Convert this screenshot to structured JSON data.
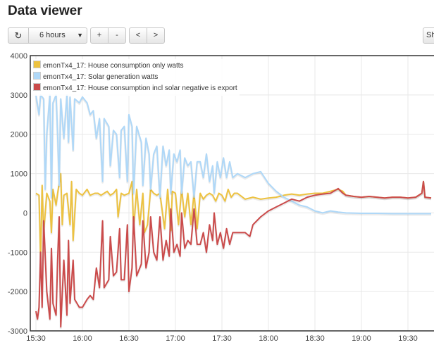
{
  "page_title": "Data viewer",
  "toolbar": {
    "refresh_icon": "refresh-icon",
    "refresh_glyph": "↻",
    "timewindow_value": "6 hours",
    "zoom_in_label": "+",
    "zoom_out_label": "-",
    "pan_left_label": "<",
    "pan_right_label": ">",
    "show_label": "Sh"
  },
  "chart_data": {
    "type": "line",
    "title": "",
    "xlabel": "",
    "ylabel": "",
    "x_ticks": [
      "15:30",
      "16:00",
      "16:30",
      "17:00",
      "17:30",
      "18:00",
      "18:30",
      "19:00",
      "19:30"
    ],
    "ylim": [
      -3000,
      4000
    ],
    "y_ticks": [
      -3000,
      -2000,
      -1000,
      0,
      1000,
      2000,
      3000,
      4000
    ],
    "grid": true,
    "legend_position": "top-left",
    "series": [
      {
        "name": "emonTx4_17: House consumption only watts",
        "color": "#edc240",
        "points": [
          [
            "15:30",
            500
          ],
          [
            "15:32",
            450
          ],
          [
            "15:33",
            -1200
          ],
          [
            "15:34",
            700
          ],
          [
            "15:35",
            -500
          ],
          [
            "15:37",
            500
          ],
          [
            "15:39",
            300
          ],
          [
            "15:40",
            -500
          ],
          [
            "15:41",
            600
          ],
          [
            "15:43",
            200
          ],
          [
            "15:44",
            500
          ],
          [
            "15:46",
            1000
          ],
          [
            "15:47",
            -300
          ],
          [
            "15:48",
            450
          ],
          [
            "15:50",
            500
          ],
          [
            "15:52",
            -300
          ],
          [
            "15:53",
            800
          ],
          [
            "15:54",
            -700
          ],
          [
            "15:56",
            600
          ],
          [
            "15:58",
            500
          ],
          [
            "16:00",
            450
          ],
          [
            "16:03",
            600
          ],
          [
            "16:05",
            450
          ],
          [
            "16:08",
            500
          ],
          [
            "16:10",
            500
          ],
          [
            "16:12",
            450
          ],
          [
            "16:14",
            500
          ],
          [
            "16:16",
            550
          ],
          [
            "16:18",
            450
          ],
          [
            "16:20",
            500
          ],
          [
            "16:22",
            600
          ],
          [
            "16:23",
            -100
          ],
          [
            "16:25",
            500
          ],
          [
            "16:27",
            450
          ],
          [
            "16:30",
            500
          ],
          [
            "16:32",
            800
          ],
          [
            "16:33",
            -400
          ],
          [
            "16:35",
            600
          ],
          [
            "16:37",
            -300
          ],
          [
            "16:39",
            500
          ],
          [
            "16:40",
            -500
          ],
          [
            "16:42",
            -300
          ],
          [
            "16:44",
            600
          ],
          [
            "16:46",
            500
          ],
          [
            "16:48",
            450
          ],
          [
            "16:50",
            500
          ],
          [
            "16:53",
            -400
          ],
          [
            "16:55",
            600
          ],
          [
            "16:57",
            -450
          ],
          [
            "16:58",
            550
          ],
          [
            "17:00",
            500
          ],
          [
            "17:02",
            -300
          ],
          [
            "17:04",
            600
          ],
          [
            "17:06",
            -100
          ],
          [
            "17:08",
            500
          ],
          [
            "17:10",
            -300
          ],
          [
            "17:12",
            500
          ],
          [
            "17:14",
            -400
          ],
          [
            "17:16",
            500
          ],
          [
            "17:18",
            350
          ],
          [
            "17:20",
            450
          ],
          [
            "17:22",
            500
          ],
          [
            "17:24",
            450
          ],
          [
            "17:26",
            300
          ],
          [
            "17:28",
            500
          ],
          [
            "17:30",
            450
          ],
          [
            "17:32",
            300
          ],
          [
            "17:34",
            600
          ],
          [
            "17:36",
            400
          ],
          [
            "17:38",
            500
          ],
          [
            "17:40",
            500
          ],
          [
            "17:45",
            350
          ],
          [
            "17:50",
            400
          ],
          [
            "17:55",
            350
          ],
          [
            "18:00",
            380
          ],
          [
            "18:05",
            400
          ],
          [
            "18:10",
            450
          ],
          [
            "18:15",
            480
          ],
          [
            "18:20",
            450
          ],
          [
            "18:25",
            480
          ],
          [
            "18:30",
            500
          ],
          [
            "18:35",
            500
          ],
          [
            "18:40",
            550
          ],
          [
            "18:45",
            600
          ],
          [
            "18:48",
            550
          ],
          [
            "18:50",
            450
          ],
          [
            "18:55",
            420
          ],
          [
            "19:00",
            400
          ],
          [
            "19:05",
            420
          ],
          [
            "19:10",
            400
          ],
          [
            "19:15",
            380
          ],
          [
            "19:20",
            400
          ],
          [
            "19:25",
            400
          ],
          [
            "19:30",
            380
          ],
          [
            "19:35",
            400
          ],
          [
            "19:39",
            500
          ],
          [
            "19:40",
            800
          ],
          [
            "19:41",
            400
          ],
          [
            "19:45",
            380
          ]
        ]
      },
      {
        "name": "emonTx4_17: Solar generation watts",
        "color": "#afd8f8",
        "points": [
          [
            "15:30",
            3000
          ],
          [
            "15:32",
            2500
          ],
          [
            "15:33",
            3000
          ],
          [
            "15:35",
            2900
          ],
          [
            "15:36",
            600
          ],
          [
            "15:37",
            2000
          ],
          [
            "15:39",
            3000
          ],
          [
            "15:40",
            400
          ],
          [
            "15:41",
            2800
          ],
          [
            "15:43",
            3000
          ],
          [
            "15:44",
            2000
          ],
          [
            "15:45",
            700
          ],
          [
            "15:46",
            2900
          ],
          [
            "15:48",
            1900
          ],
          [
            "15:50",
            3000
          ],
          [
            "15:51",
            1800
          ],
          [
            "15:52",
            2950
          ],
          [
            "15:54",
            1600
          ],
          [
            "15:55",
            2900
          ],
          [
            "15:58",
            2800
          ],
          [
            "16:00",
            2950
          ],
          [
            "16:03",
            2800
          ],
          [
            "16:05",
            2500
          ],
          [
            "16:07",
            2600
          ],
          [
            "16:09",
            1900
          ],
          [
            "16:11",
            2400
          ],
          [
            "16:13",
            800
          ],
          [
            "16:14",
            2400
          ],
          [
            "16:17",
            2200
          ],
          [
            "16:18",
            1200
          ],
          [
            "16:20",
            2100
          ],
          [
            "16:22",
            2000
          ],
          [
            "16:24",
            900
          ],
          [
            "16:25",
            2100
          ],
          [
            "16:27",
            2200
          ],
          [
            "16:29",
            800
          ],
          [
            "16:30",
            2500
          ],
          [
            "16:32",
            2200
          ],
          [
            "16:33",
            500
          ],
          [
            "16:35",
            2200
          ],
          [
            "16:38",
            1800
          ],
          [
            "16:39",
            700
          ],
          [
            "16:41",
            1900
          ],
          [
            "16:43",
            1500
          ],
          [
            "16:44",
            600
          ],
          [
            "16:46",
            1500
          ],
          [
            "16:48",
            1700
          ],
          [
            "16:50",
            400
          ],
          [
            "16:52",
            1700
          ],
          [
            "16:54",
            1200
          ],
          [
            "16:56",
            1600
          ],
          [
            "16:57",
            500
          ],
          [
            "16:59",
            1500
          ],
          [
            "17:01",
            1300
          ],
          [
            "17:03",
            1600
          ],
          [
            "17:04",
            500
          ],
          [
            "17:06",
            1400
          ],
          [
            "17:08",
            1200
          ],
          [
            "17:10",
            1300
          ],
          [
            "17:12",
            400
          ],
          [
            "17:14",
            1300
          ],
          [
            "17:16",
            1300
          ],
          [
            "17:18",
            900
          ],
          [
            "17:20",
            1500
          ],
          [
            "17:22",
            800
          ],
          [
            "17:24",
            1200
          ],
          [
            "17:25",
            500
          ],
          [
            "17:27",
            1300
          ],
          [
            "17:29",
            900
          ],
          [
            "17:31",
            1400
          ],
          [
            "17:33",
            900
          ],
          [
            "17:35",
            1300
          ],
          [
            "17:37",
            900
          ],
          [
            "17:40",
            1000
          ],
          [
            "17:45",
            900
          ],
          [
            "17:50",
            1000
          ],
          [
            "17:55",
            1050
          ],
          [
            "18:00",
            750
          ],
          [
            "18:05",
            550
          ],
          [
            "18:10",
            400
          ],
          [
            "18:15",
            300
          ],
          [
            "18:20",
            200
          ],
          [
            "18:25",
            150
          ],
          [
            "18:30",
            50
          ],
          [
            "18:35",
            0
          ],
          [
            "18:40",
            50
          ],
          [
            "18:45",
            20
          ],
          [
            "18:50",
            0
          ],
          [
            "19:00",
            -10
          ],
          [
            "19:10",
            -10
          ],
          [
            "19:20",
            -20
          ],
          [
            "19:30",
            -20
          ],
          [
            "19:45",
            -20
          ]
        ]
      },
      {
        "name": "emonTx4_17: House consumption incl solar negative is export",
        "color": "#cb4b4b",
        "points": [
          [
            "15:30",
            -2500
          ],
          [
            "15:31",
            -2700
          ],
          [
            "15:32",
            -2400
          ],
          [
            "15:33",
            -1000
          ],
          [
            "15:34",
            -2400
          ],
          [
            "15:35",
            -200
          ],
          [
            "15:37",
            -2000
          ],
          [
            "15:39",
            -2700
          ],
          [
            "15:40",
            -900
          ],
          [
            "15:41",
            -2300
          ],
          [
            "15:43",
            -2600
          ],
          [
            "15:44",
            -1200
          ],
          [
            "15:45",
            -100
          ],
          [
            "15:46",
            -2900
          ],
          [
            "15:48",
            -1200
          ],
          [
            "15:50",
            -2600
          ],
          [
            "15:51",
            -700
          ],
          [
            "15:52",
            -2300
          ],
          [
            "15:54",
            -1200
          ],
          [
            "15:55",
            -2200
          ],
          [
            "15:58",
            -2400
          ],
          [
            "16:00",
            -2400
          ],
          [
            "16:03",
            -2200
          ],
          [
            "16:05",
            -2100
          ],
          [
            "16:07",
            -2200
          ],
          [
            "16:09",
            -1400
          ],
          [
            "16:11",
            -1900
          ],
          [
            "16:13",
            -200
          ],
          [
            "16:14",
            -1900
          ],
          [
            "16:17",
            -1700
          ],
          [
            "16:18",
            -600
          ],
          [
            "16:20",
            -1600
          ],
          [
            "16:22",
            -1500
          ],
          [
            "16:24",
            -400
          ],
          [
            "16:25",
            -1700
          ],
          [
            "16:27",
            -1700
          ],
          [
            "16:29",
            -300
          ],
          [
            "16:30",
            -2000
          ],
          [
            "16:32",
            -1400
          ],
          [
            "16:33",
            -100
          ],
          [
            "16:35",
            -1600
          ],
          [
            "16:38",
            -1300
          ],
          [
            "16:39",
            -200
          ],
          [
            "16:41",
            -1400
          ],
          [
            "16:43",
            -1000
          ],
          [
            "16:44",
            -100
          ],
          [
            "16:46",
            -1000
          ],
          [
            "16:48",
            -1200
          ],
          [
            "16:50",
            -100
          ],
          [
            "16:52",
            -1200
          ],
          [
            "16:54",
            -700
          ],
          [
            "16:56",
            -1100
          ],
          [
            "16:57",
            100
          ],
          [
            "16:59",
            -1000
          ],
          [
            "17:01",
            -800
          ],
          [
            "17:03",
            -1100
          ],
          [
            "17:04",
            0
          ],
          [
            "17:06",
            -900
          ],
          [
            "17:08",
            -700
          ],
          [
            "17:10",
            -800
          ],
          [
            "17:12",
            100
          ],
          [
            "17:14",
            -800
          ],
          [
            "17:16",
            -800
          ],
          [
            "17:18",
            -500
          ],
          [
            "17:20",
            -1000
          ],
          [
            "17:22",
            -300
          ],
          [
            "17:24",
            -700
          ],
          [
            "17:25",
            0
          ],
          [
            "17:27",
            -800
          ],
          [
            "17:29",
            -500
          ],
          [
            "17:31",
            -900
          ],
          [
            "17:33",
            -400
          ],
          [
            "17:35",
            -800
          ],
          [
            "17:37",
            -500
          ],
          [
            "17:40",
            -500
          ],
          [
            "17:45",
            -500
          ],
          [
            "17:48",
            -600
          ],
          [
            "17:50",
            -300
          ],
          [
            "17:55",
            -100
          ],
          [
            "18:00",
            50
          ],
          [
            "18:05",
            150
          ],
          [
            "18:10",
            250
          ],
          [
            "18:15",
            350
          ],
          [
            "18:20",
            300
          ],
          [
            "18:25",
            400
          ],
          [
            "18:30",
            450
          ],
          [
            "18:35",
            480
          ],
          [
            "18:40",
            500
          ],
          [
            "18:45",
            620
          ],
          [
            "18:48",
            500
          ],
          [
            "18:50",
            450
          ],
          [
            "18:55",
            420
          ],
          [
            "19:00",
            400
          ],
          [
            "19:05",
            420
          ],
          [
            "19:10",
            400
          ],
          [
            "19:15",
            380
          ],
          [
            "19:20",
            400
          ],
          [
            "19:25",
            400
          ],
          [
            "19:30",
            380
          ],
          [
            "19:35",
            400
          ],
          [
            "19:39",
            500
          ],
          [
            "19:40",
            800
          ],
          [
            "19:41",
            400
          ],
          [
            "19:45",
            380
          ]
        ]
      }
    ]
  }
}
